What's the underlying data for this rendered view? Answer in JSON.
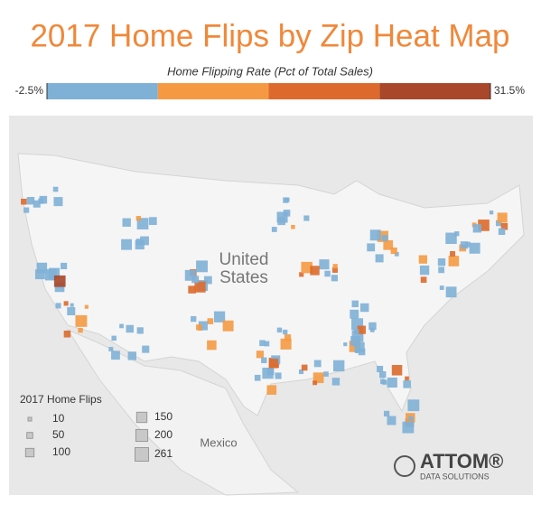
{
  "header": {
    "title": "2017 Home Flips by Zip Heat Map"
  },
  "color_legend": {
    "title": "Home Flipping Rate (Pct of Total Sales)",
    "min": {
      "value": -2.5,
      "label": "-2.5%"
    },
    "max": {
      "value": 31.5,
      "label": "31.5%"
    },
    "colors": [
      "#7fb0d6",
      "#f59a43",
      "#dd6a2c",
      "#a8472a"
    ]
  },
  "map": {
    "country_label": [
      "United",
      "States"
    ],
    "mexico_label": "Mexico"
  },
  "size_legend": {
    "title": "2017 Home Flips",
    "sizes": [
      10,
      50,
      100,
      150,
      200,
      261
    ]
  },
  "logo": {
    "name": "ATTOM®",
    "tagline": "DATA SOLUTIONS"
  }
}
